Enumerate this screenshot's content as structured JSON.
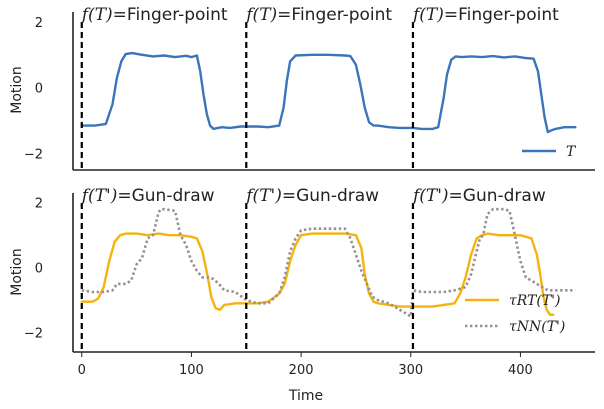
{
  "chart_data": [
    {
      "type": "line",
      "ylabel": "Motion",
      "ylim": [
        -2.5,
        2.3
      ],
      "xlim": [
        -8,
        468
      ],
      "yticks": [
        -2,
        0,
        2
      ],
      "ytick_labels": [
        "−2",
        "0",
        "2"
      ],
      "segment_lines": [
        0,
        150,
        302
      ],
      "segment_titles": [
        {
          "x": 0,
          "prefix": "f(T)=",
          "text": "Finger-point"
        },
        {
          "x": 150,
          "prefix": "f(T)=",
          "text": "Finger-point"
        },
        {
          "x": 302,
          "prefix": "f(T)=",
          "text": "Finger-point"
        }
      ],
      "legend_position": "lower-right",
      "series": [
        {
          "name": "T",
          "color": "#3b75b9",
          "style": "solid",
          "x": [
            0,
            12,
            22,
            28,
            32,
            36,
            40,
            46,
            55,
            65,
            75,
            85,
            95,
            100,
            105,
            108,
            111,
            114,
            117,
            120,
            124,
            128,
            135,
            145,
            150,
            160,
            170,
            180,
            180,
            184,
            187,
            190,
            195,
            210,
            225,
            240,
            245,
            250,
            254,
            258,
            262,
            266,
            270,
            280,
            290,
            302,
            310,
            320,
            325,
            330,
            333,
            337,
            341,
            346,
            355,
            365,
            375,
            385,
            395,
            405,
            412,
            416,
            419,
            422,
            425,
            428,
            432,
            440,
            450
          ],
          "y": [
            -1.15,
            -1.15,
            -1.1,
            -0.5,
            0.3,
            0.8,
            1.02,
            1.05,
            1.0,
            0.95,
            0.98,
            0.93,
            0.97,
            0.93,
            0.98,
            0.5,
            -0.2,
            -0.8,
            -1.15,
            -1.25,
            -1.22,
            -1.2,
            -1.22,
            -1.18,
            -1.18,
            -1.18,
            -1.2,
            -1.15,
            -1.15,
            -0.6,
            0.2,
            0.8,
            0.98,
            1.0,
            1.0,
            0.98,
            0.96,
            0.7,
            0.1,
            -0.6,
            -1.05,
            -1.15,
            -1.15,
            -1.2,
            -1.22,
            -1.22,
            -1.25,
            -1.25,
            -1.2,
            -0.3,
            0.4,
            0.85,
            0.95,
            0.93,
            0.95,
            0.93,
            0.96,
            0.92,
            0.95,
            0.9,
            0.88,
            0.5,
            -0.2,
            -0.9,
            -1.35,
            -1.3,
            -1.25,
            -1.2,
            -1.2
          ]
        }
      ]
    },
    {
      "type": "line",
      "xlabel": "Time",
      "ylabel": "Motion",
      "ylim": [
        -2.6,
        2.3
      ],
      "xlim": [
        -8,
        468
      ],
      "yticks": [
        -2,
        0,
        2
      ],
      "ytick_labels": [
        "−2",
        "0",
        "2"
      ],
      "xticks": [
        0,
        100,
        200,
        300,
        400
      ],
      "xtick_labels": [
        "0",
        "100",
        "200",
        "300",
        "400"
      ],
      "segment_lines": [
        0,
        150,
        302
      ],
      "segment_titles": [
        {
          "x": 0,
          "prefix": "f(T')=",
          "text": "Gun-draw"
        },
        {
          "x": 150,
          "prefix": "f(T')=",
          "text": "Gun-draw"
        },
        {
          "x": 302,
          "prefix": "f(T')=",
          "text": "Gun-draw"
        }
      ],
      "legend_position": "lower-right",
      "series": [
        {
          "name": "τRT(T')",
          "color": "#f5b30d",
          "style": "solid",
          "x": [
            0,
            10,
            15,
            20,
            25,
            30,
            35,
            40,
            50,
            60,
            70,
            80,
            90,
            100,
            105,
            110,
            115,
            118,
            122,
            126,
            130,
            140,
            150,
            160,
            170,
            180,
            185,
            190,
            195,
            200,
            210,
            225,
            240,
            250,
            255,
            258,
            262,
            266,
            270,
            280,
            290,
            302,
            310,
            320,
            330,
            340,
            345,
            350,
            355,
            360,
            365,
            370,
            380,
            390,
            400,
            410,
            415,
            418,
            421,
            424,
            427,
            430
          ],
          "y": [
            -1.05,
            -1.05,
            -0.95,
            -0.6,
            0.2,
            0.8,
            1.0,
            1.05,
            1.05,
            1.0,
            1.05,
            1.0,
            1.0,
            0.95,
            0.9,
            0.5,
            -0.3,
            -0.9,
            -1.25,
            -1.3,
            -1.15,
            -1.1,
            -1.1,
            -1.1,
            -1.05,
            -0.8,
            -0.5,
            0.2,
            0.7,
            1.0,
            1.05,
            1.05,
            1.05,
            1.0,
            0.6,
            -0.2,
            -0.8,
            -1.05,
            -1.1,
            -1.15,
            -1.2,
            -1.2,
            -1.2,
            -1.2,
            -1.15,
            -1.1,
            -0.8,
            -0.3,
            0.4,
            0.9,
            1.0,
            1.05,
            1.0,
            1.0,
            1.0,
            0.9,
            0.4,
            -0.2,
            -0.9,
            -1.3,
            -1.45,
            -1.45
          ]
        },
        {
          "name": "τNN(T')",
          "color": "#9a8f8f",
          "style": "dotted",
          "x": [
            0,
            10,
            20,
            28,
            32,
            36,
            40,
            45,
            50,
            55,
            60,
            65,
            70,
            72,
            75,
            80,
            85,
            90,
            95,
            100,
            105,
            110,
            115,
            120,
            125,
            130,
            140,
            150,
            160,
            170,
            180,
            185,
            190,
            195,
            200,
            210,
            220,
            230,
            240,
            245,
            250,
            255,
            260,
            265,
            270,
            280,
            290,
            300,
            302,
            310,
            320,
            330,
            340,
            350,
            355,
            360,
            363,
            366,
            370,
            375,
            380,
            385,
            390,
            395,
            400,
            405,
            410,
            415,
            420,
            425,
            430,
            440,
            450
          ],
          "y": [
            -0.7,
            -0.75,
            -0.75,
            -0.7,
            -0.5,
            -0.5,
            -0.5,
            -0.4,
            0.1,
            0.3,
            0.9,
            1.0,
            1.7,
            1.8,
            1.8,
            1.78,
            1.75,
            1.0,
            0.7,
            0.2,
            -0.1,
            -0.3,
            -0.3,
            -0.35,
            -0.5,
            -0.7,
            -0.75,
            -1.0,
            -1.1,
            -1.1,
            -0.8,
            -0.3,
            0.5,
            0.9,
            1.15,
            1.2,
            1.2,
            1.2,
            1.2,
            0.9,
            0.4,
            -0.1,
            -0.5,
            -0.9,
            -1.0,
            -1.1,
            -1.3,
            -1.5,
            -0.7,
            -0.75,
            -0.75,
            -0.75,
            -0.7,
            -0.6,
            -0.2,
            0.5,
            0.9,
            1.0,
            1.65,
            1.8,
            1.8,
            1.8,
            1.75,
            1.0,
            0.2,
            -0.3,
            -0.4,
            -0.5,
            -0.6,
            -0.7,
            -0.7,
            -0.7,
            -0.7
          ]
        }
      ]
    }
  ]
}
